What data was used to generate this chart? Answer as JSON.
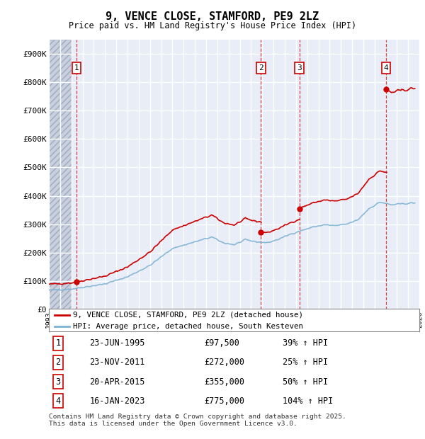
{
  "title": "9, VENCE CLOSE, STAMFORD, PE9 2LZ",
  "subtitle": "Price paid vs. HM Land Registry's House Price Index (HPI)",
  "ylim": [
    0,
    950000
  ],
  "yticks": [
    0,
    100000,
    200000,
    300000,
    400000,
    500000,
    600000,
    700000,
    800000,
    900000
  ],
  "ytick_labels": [
    "£0",
    "£100K",
    "£200K",
    "£300K",
    "£400K",
    "£500K",
    "£600K",
    "£700K",
    "£800K",
    "£900K"
  ],
  "xlim_start": 1993.0,
  "xlim_end": 2026.0,
  "background_color": "#e8edf7",
  "hatch_region_end": 1995.0,
  "grid_color": "#ffffff",
  "sale_color": "#cc0000",
  "hpi_color": "#7fb3d3",
  "sale_label": "9, VENCE CLOSE, STAMFORD, PE9 2LZ (detached house)",
  "hpi_label": "HPI: Average price, detached house, South Kesteven",
  "footer": "Contains HM Land Registry data © Crown copyright and database right 2025.\nThis data is licensed under the Open Government Licence v3.0.",
  "transactions": [
    {
      "num": 1,
      "date": "23-JUN-1995",
      "price": 97500,
      "pct": "39% ↑ HPI",
      "year": 1995.47
    },
    {
      "num": 2,
      "date": "23-NOV-2011",
      "price": 272000,
      "pct": "25% ↑ HPI",
      "year": 2011.89
    },
    {
      "num": 3,
      "date": "20-APR-2015",
      "price": 355000,
      "pct": "50% ↑ HPI",
      "year": 2015.3
    },
    {
      "num": 4,
      "date": "16-JAN-2023",
      "price": 775000,
      "pct": "104% ↑ HPI",
      "year": 2023.04
    }
  ]
}
